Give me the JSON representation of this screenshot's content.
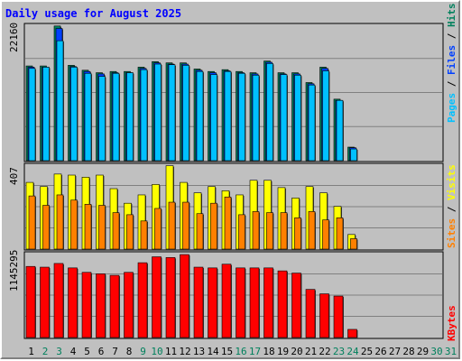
{
  "title": "Daily usage for August 2025",
  "colors": {
    "background": "#c0c0c0",
    "title": "#0000ff",
    "hits": "#00805c",
    "files": "#0040ff",
    "pages": "#00c0ff",
    "visits": "#ffff00",
    "sites": "#ff8000",
    "kbytes": "#ff0000",
    "weekend_day": "#00805c",
    "weekday": "#000000"
  },
  "chart_data": [
    {
      "type": "bar",
      "panel": "hits-files-pages",
      "ymax_label": "22160",
      "ylim": [
        0,
        22160
      ],
      "legend": {
        "pages": "Pages",
        "sep1": " / ",
        "files": "Files",
        "sep2": " / ",
        "hits": "Hits"
      },
      "categories": [
        "1",
        "2",
        "3",
        "4",
        "5",
        "6",
        "7",
        "8",
        "9",
        "10",
        "11",
        "12",
        "13",
        "14",
        "15",
        "16",
        "17",
        "18",
        "19",
        "20",
        "21",
        "22",
        "23",
        "24",
        "25",
        "26",
        "27",
        "28",
        "29",
        "30",
        "31"
      ],
      "series": [
        {
          "name": "Hits",
          "values": [
            15400,
            15400,
            21900,
            15500,
            14700,
            14300,
            14500,
            14500,
            15200,
            16100,
            15900,
            15900,
            14900,
            14500,
            14800,
            14500,
            14300,
            16200,
            14300,
            14300,
            12700,
            15200,
            10000,
            2200,
            null,
            null,
            null,
            null,
            null,
            null,
            null
          ]
        },
        {
          "name": "Files",
          "values": [
            15200,
            15200,
            21500,
            15300,
            14500,
            14100,
            14300,
            14300,
            15000,
            15900,
            15700,
            15700,
            14700,
            14300,
            14600,
            14300,
            14100,
            16000,
            14100,
            14100,
            12500,
            15000,
            9800,
            2100,
            null,
            null,
            null,
            null,
            null,
            null,
            null
          ]
        },
        {
          "name": "Pages",
          "values": [
            15000,
            15200,
            19500,
            15200,
            14200,
            13700,
            14200,
            14300,
            14800,
            15700,
            15600,
            15500,
            14500,
            14000,
            14500,
            14200,
            13900,
            15800,
            14000,
            13900,
            12300,
            14600,
            9800,
            1900,
            null,
            null,
            null,
            null,
            null,
            null,
            null
          ]
        }
      ]
    },
    {
      "type": "bar",
      "panel": "visits-sites",
      "ymax_label": "407",
      "ylim": [
        0,
        407
      ],
      "legend": {
        "sites": "Sites",
        "sep": " / ",
        "visits": "Visits"
      },
      "categories": [
        "1",
        "2",
        "3",
        "4",
        "5",
        "6",
        "7",
        "8",
        "9",
        "10",
        "11",
        "12",
        "13",
        "14",
        "15",
        "16",
        "17",
        "18",
        "19",
        "20",
        "21",
        "22",
        "23",
        "24",
        "25",
        "26",
        "27",
        "28",
        "29",
        "30",
        "31"
      ],
      "series": [
        {
          "name": "Visits",
          "values": [
            320,
            300,
            360,
            355,
            345,
            355,
            290,
            220,
            260,
            310,
            400,
            320,
            270,
            300,
            280,
            260,
            330,
            330,
            295,
            245,
            300,
            270,
            205,
            70,
            null,
            null,
            null,
            null,
            null,
            null,
            null
          ]
        },
        {
          "name": "Sites",
          "values": [
            255,
            210,
            260,
            235,
            215,
            210,
            175,
            165,
            135,
            195,
            225,
            225,
            170,
            220,
            250,
            165,
            180,
            175,
            175,
            150,
            180,
            140,
            150,
            50,
            null,
            null,
            null,
            null,
            null,
            null,
            null
          ]
        }
      ]
    },
    {
      "type": "bar",
      "panel": "kbytes",
      "ymax_label": "1145295",
      "ylim": [
        0,
        1145295
      ],
      "legend": {
        "kbytes": "KBytes"
      },
      "categories": [
        "1",
        "2",
        "3",
        "4",
        "5",
        "6",
        "7",
        "8",
        "9",
        "10",
        "11",
        "12",
        "13",
        "14",
        "15",
        "16",
        "17",
        "18",
        "19",
        "20",
        "21",
        "22",
        "23",
        "24",
        "25",
        "26",
        "27",
        "28",
        "29",
        "30",
        "31"
      ],
      "series": [
        {
          "name": "KBytes",
          "values": [
            960000,
            950000,
            1000000,
            940000,
            880000,
            860000,
            840000,
            880000,
            1010000,
            1090000,
            1080000,
            1120000,
            950000,
            940000,
            990000,
            940000,
            940000,
            940000,
            900000,
            870000,
            650000,
            590000,
            560000,
            110000,
            null,
            null,
            null,
            null,
            null,
            null,
            null
          ]
        }
      ]
    }
  ],
  "x_axis": {
    "days": [
      {
        "label": "1",
        "weekend": false
      },
      {
        "label": "2",
        "weekend": true
      },
      {
        "label": "3",
        "weekend": true
      },
      {
        "label": "4",
        "weekend": false
      },
      {
        "label": "5",
        "weekend": false
      },
      {
        "label": "6",
        "weekend": false
      },
      {
        "label": "7",
        "weekend": false
      },
      {
        "label": "8",
        "weekend": false
      },
      {
        "label": "9",
        "weekend": true
      },
      {
        "label": "10",
        "weekend": true
      },
      {
        "label": "11",
        "weekend": false
      },
      {
        "label": "12",
        "weekend": false
      },
      {
        "label": "13",
        "weekend": false
      },
      {
        "label": "14",
        "weekend": false
      },
      {
        "label": "15",
        "weekend": false
      },
      {
        "label": "16",
        "weekend": true
      },
      {
        "label": "17",
        "weekend": true
      },
      {
        "label": "18",
        "weekend": false
      },
      {
        "label": "19",
        "weekend": false
      },
      {
        "label": "20",
        "weekend": false
      },
      {
        "label": "21",
        "weekend": false
      },
      {
        "label": "22",
        "weekend": false
      },
      {
        "label": "23",
        "weekend": true
      },
      {
        "label": "24",
        "weekend": true
      },
      {
        "label": "25",
        "weekend": false
      },
      {
        "label": "26",
        "weekend": false
      },
      {
        "label": "27",
        "weekend": false
      },
      {
        "label": "28",
        "weekend": false
      },
      {
        "label": "29",
        "weekend": false
      },
      {
        "label": "30",
        "weekend": true
      },
      {
        "label": "31",
        "weekend": true
      }
    ]
  }
}
